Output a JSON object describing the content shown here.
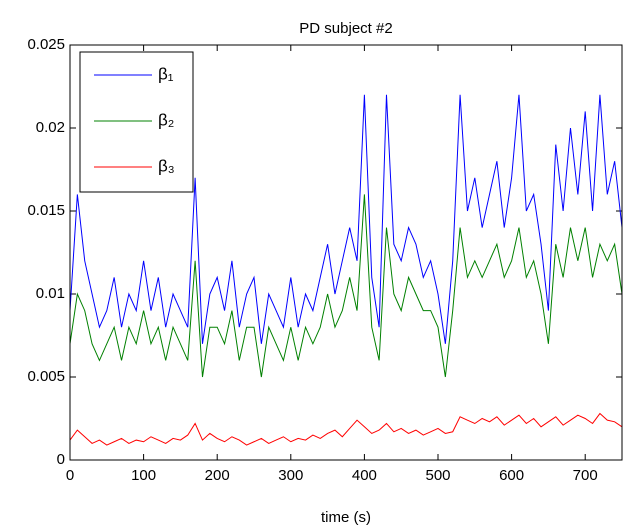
{
  "chart_data": {
    "type": "line",
    "title": "PD subject #2",
    "xlabel": "time (s)",
    "x": [
      0,
      10,
      20,
      30,
      40,
      50,
      60,
      70,
      80,
      90,
      100,
      110,
      120,
      130,
      140,
      150,
      160,
      170,
      180,
      190,
      200,
      210,
      220,
      230,
      240,
      250,
      260,
      270,
      280,
      290,
      300,
      310,
      320,
      330,
      340,
      350,
      360,
      370,
      380,
      390,
      400,
      410,
      420,
      430,
      440,
      450,
      460,
      470,
      480,
      490,
      500,
      510,
      520,
      530,
      540,
      550,
      560,
      570,
      580,
      590,
      600,
      610,
      620,
      630,
      640,
      650,
      660,
      670,
      680,
      690,
      700,
      710,
      720,
      730,
      740,
      750
    ],
    "series": [
      {
        "name": "β₁",
        "color": "#0000ff",
        "values": [
          0.009,
          0.016,
          0.012,
          0.01,
          0.008,
          0.009,
          0.011,
          0.008,
          0.01,
          0.009,
          0.012,
          0.009,
          0.011,
          0.008,
          0.01,
          0.009,
          0.008,
          0.017,
          0.007,
          0.01,
          0.011,
          0.009,
          0.012,
          0.008,
          0.01,
          0.011,
          0.007,
          0.01,
          0.009,
          0.008,
          0.011,
          0.008,
          0.01,
          0.009,
          0.011,
          0.013,
          0.01,
          0.012,
          0.014,
          0.012,
          0.022,
          0.011,
          0.008,
          0.022,
          0.013,
          0.012,
          0.014,
          0.013,
          0.011,
          0.012,
          0.01,
          0.007,
          0.012,
          0.022,
          0.015,
          0.017,
          0.014,
          0.016,
          0.018,
          0.014,
          0.017,
          0.022,
          0.015,
          0.016,
          0.013,
          0.009,
          0.019,
          0.015,
          0.02,
          0.016,
          0.021,
          0.015,
          0.022,
          0.016,
          0.018,
          0.014
        ]
      },
      {
        "name": "β₂",
        "color": "#008000",
        "values": [
          0.007,
          0.01,
          0.009,
          0.007,
          0.006,
          0.007,
          0.008,
          0.006,
          0.008,
          0.007,
          0.009,
          0.007,
          0.008,
          0.006,
          0.008,
          0.007,
          0.006,
          0.012,
          0.005,
          0.008,
          0.008,
          0.007,
          0.009,
          0.006,
          0.008,
          0.008,
          0.005,
          0.008,
          0.007,
          0.006,
          0.008,
          0.006,
          0.008,
          0.007,
          0.008,
          0.01,
          0.008,
          0.009,
          0.011,
          0.009,
          0.016,
          0.008,
          0.006,
          0.014,
          0.01,
          0.009,
          0.011,
          0.01,
          0.009,
          0.009,
          0.008,
          0.005,
          0.009,
          0.014,
          0.011,
          0.012,
          0.011,
          0.012,
          0.013,
          0.011,
          0.012,
          0.014,
          0.011,
          0.012,
          0.01,
          0.007,
          0.013,
          0.011,
          0.014,
          0.012,
          0.014,
          0.011,
          0.013,
          0.012,
          0.013,
          0.01
        ]
      },
      {
        "name": "β₃",
        "color": "#ff0000",
        "values": [
          0.0012,
          0.0018,
          0.0014,
          0.001,
          0.0012,
          0.0009,
          0.0011,
          0.0013,
          0.001,
          0.0012,
          0.0011,
          0.0014,
          0.0012,
          0.001,
          0.0013,
          0.0012,
          0.0015,
          0.0022,
          0.0012,
          0.0016,
          0.0013,
          0.0011,
          0.0014,
          0.0012,
          0.0009,
          0.0011,
          0.0013,
          0.001,
          0.0012,
          0.0014,
          0.0011,
          0.0013,
          0.0012,
          0.0015,
          0.0013,
          0.0016,
          0.0018,
          0.0014,
          0.0019,
          0.0024,
          0.002,
          0.0016,
          0.0018,
          0.0022,
          0.0017,
          0.0019,
          0.0016,
          0.0018,
          0.0015,
          0.0017,
          0.0019,
          0.0016,
          0.0017,
          0.0026,
          0.0024,
          0.0022,
          0.0025,
          0.0023,
          0.0026,
          0.0021,
          0.0024,
          0.0027,
          0.0022,
          0.0025,
          0.002,
          0.0023,
          0.0026,
          0.0021,
          0.0024,
          0.0027,
          0.0025,
          0.0022,
          0.0028,
          0.0024,
          0.0023,
          0.002
        ]
      }
    ],
    "xlim": [
      0,
      750
    ],
    "xticks": [
      0,
      100,
      200,
      300,
      400,
      500,
      600,
      700
    ],
    "ylim": [
      0,
      0.025
    ],
    "yticks": [
      0,
      0.005,
      0.01,
      0.015,
      0.02,
      0.025
    ],
    "legend": "upper left"
  }
}
